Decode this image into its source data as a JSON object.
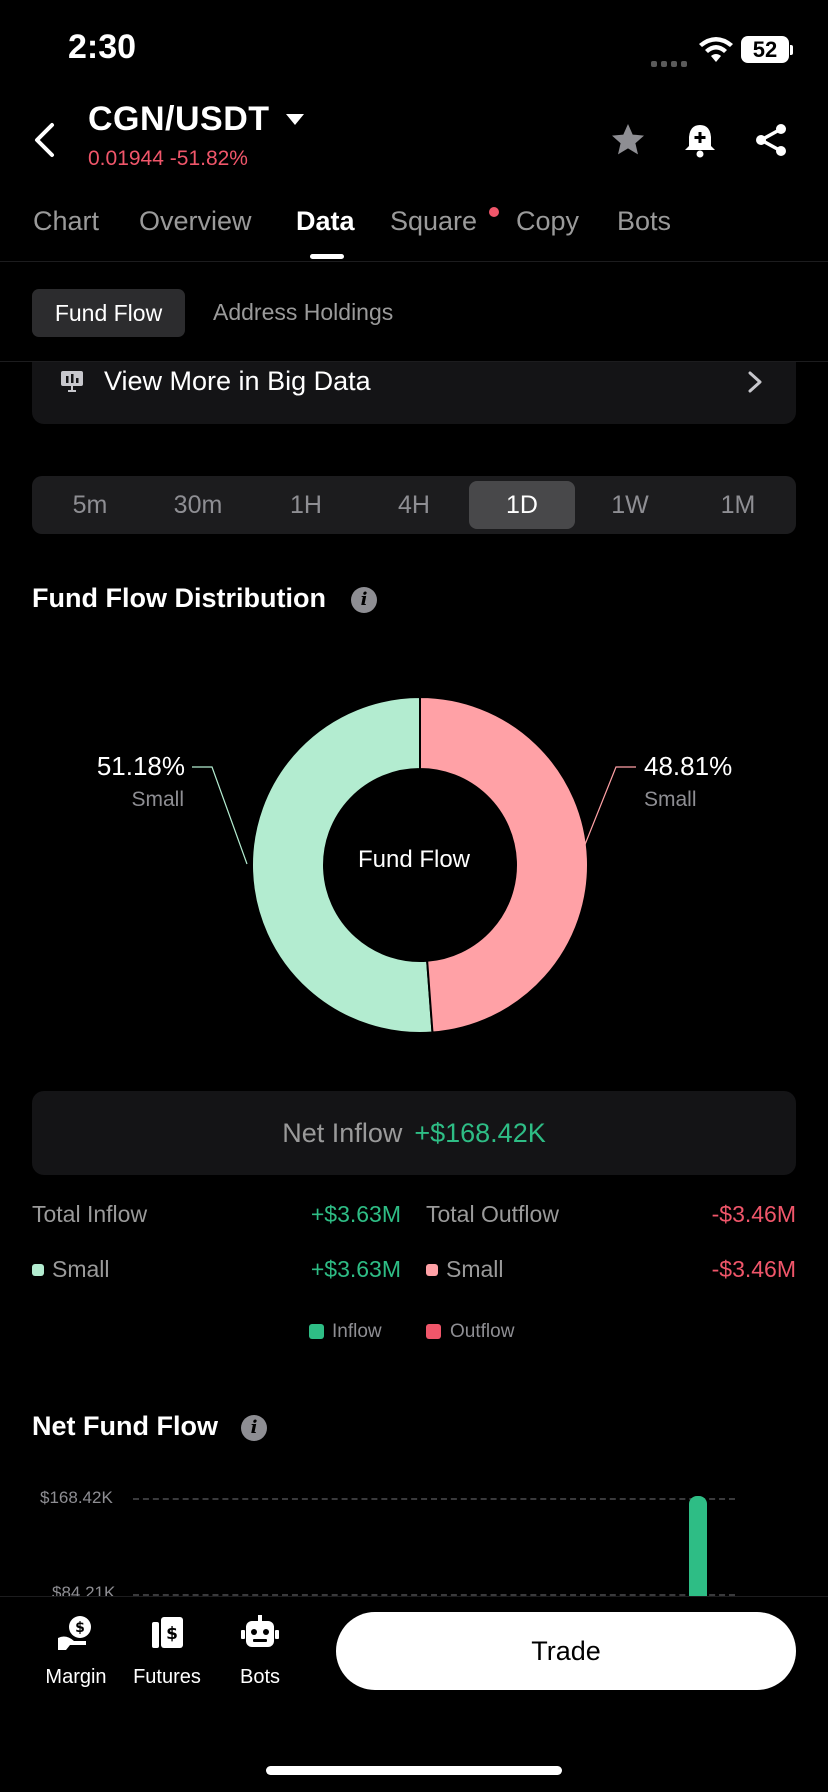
{
  "status_bar": {
    "time": "2:30",
    "battery": "52"
  },
  "header": {
    "pair": "CGN/USDT",
    "price": "0.01944",
    "change": "-51.82%",
    "icons": [
      "back-icon",
      "star-icon",
      "bell-plus-icon",
      "share-icon"
    ]
  },
  "tabs": [
    {
      "label": "Chart"
    },
    {
      "label": "Overview"
    },
    {
      "label": "Data"
    },
    {
      "label": "Square"
    },
    {
      "label": "Copy"
    },
    {
      "label": "Bots"
    }
  ],
  "subtabs": {
    "active": "Fund Flow",
    "other": "Address Holdings"
  },
  "view_more": {
    "label": "View More in Big Data"
  },
  "periods": [
    "5m",
    "30m",
    "1H",
    "4H",
    "1D",
    "1W",
    "1M"
  ],
  "selected_period": "1D",
  "distribution": {
    "title": "Fund Flow Distribution",
    "center_label": "Fund Flow",
    "left": {
      "pct": "51.18%",
      "label": "Small"
    },
    "right": {
      "pct": "48.81%",
      "label": "Small"
    }
  },
  "net_inflow": {
    "label": "Net Inflow",
    "value": "+$168.42K"
  },
  "totals": {
    "inflow_label": "Total Inflow",
    "inflow_value": "+$3.63M",
    "outflow_label": "Total Outflow",
    "outflow_value": "-$3.46M",
    "small_in_label": "Small",
    "small_in_value": "+$3.63M",
    "small_out_label": "Small",
    "small_out_value": "-$3.46M"
  },
  "legend": {
    "inflow": "Inflow",
    "outflow": "Outflow"
  },
  "net_fund_flow": {
    "title": "Net Fund Flow",
    "y_ticks": [
      "$168.42K",
      "$84.21K"
    ]
  },
  "colors": {
    "inflow": "#2ebd85",
    "outflow": "#f0566a",
    "donut_inflow": "#b3ecd0",
    "donut_outflow": "#ffa1a6"
  },
  "bottom_nav": [
    {
      "label": "Margin",
      "icon": "margin-icon"
    },
    {
      "label": "Futures",
      "icon": "futures-icon"
    },
    {
      "label": "Bots",
      "icon": "bots-icon"
    }
  ],
  "trade_button": "Trade",
  "chart_data": [
    {
      "type": "pie",
      "title": "Fund Flow Distribution",
      "slices": [
        {
          "name": "Small",
          "value": 51.18
        },
        {
          "name": "Small",
          "value": 48.81
        }
      ]
    },
    {
      "type": "bar",
      "title": "Net Fund Flow",
      "y_ticks": [
        168420,
        84210
      ],
      "series": [
        {
          "values": [
            168420
          ]
        }
      ]
    }
  ]
}
